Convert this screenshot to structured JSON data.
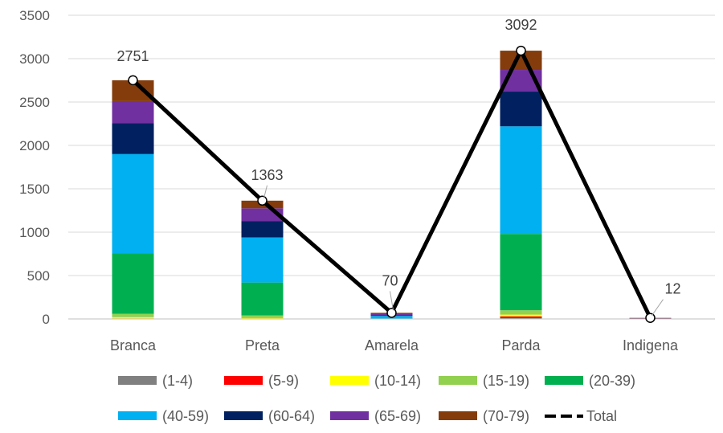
{
  "chart_data": {
    "type": "bar",
    "stacked": true,
    "categories": [
      "Branca",
      "Preta",
      "Amarela",
      "Parda",
      "Indigena"
    ],
    "ylim": [
      0,
      3500
    ],
    "yticks": [
      0,
      500,
      1000,
      1500,
      2000,
      2500,
      3000,
      3500
    ],
    "grid": true,
    "legend_position": "bottom",
    "series": [
      {
        "name": "(1-4)",
        "color": "#808080",
        "values": [
          3,
          1,
          0,
          10,
          0
        ]
      },
      {
        "name": "(5-9)",
        "color": "#ff0000",
        "values": [
          3,
          2,
          0,
          20,
          0
        ]
      },
      {
        "name": "(10-14)",
        "color": "#ffff00",
        "values": [
          14,
          7,
          0,
          20,
          0
        ]
      },
      {
        "name": "(15-19)",
        "color": "#92d050",
        "values": [
          40,
          30,
          0,
          50,
          0
        ]
      },
      {
        "name": "(20-39)",
        "color": "#00b050",
        "values": [
          695,
          380,
          5,
          880,
          2
        ]
      },
      {
        "name": "(40-59)",
        "color": "#00b0f0",
        "values": [
          1145,
          520,
          30,
          1240,
          2
        ]
      },
      {
        "name": "(60-64)",
        "color": "#002060",
        "values": [
          355,
          185,
          10,
          400,
          2
        ]
      },
      {
        "name": "(65-69)",
        "color": "#7030a0",
        "values": [
          255,
          150,
          15,
          250,
          2
        ]
      },
      {
        "name": "(70-79)",
        "color": "#843c0c",
        "values": [
          241,
          88,
          10,
          222,
          4
        ]
      }
    ],
    "total": {
      "name": "Total",
      "color": "#000000",
      "values": [
        2751,
        1363,
        70,
        3092,
        12
      ],
      "labels": [
        "2751",
        "1363",
        "70",
        "3092",
        "12"
      ]
    }
  }
}
